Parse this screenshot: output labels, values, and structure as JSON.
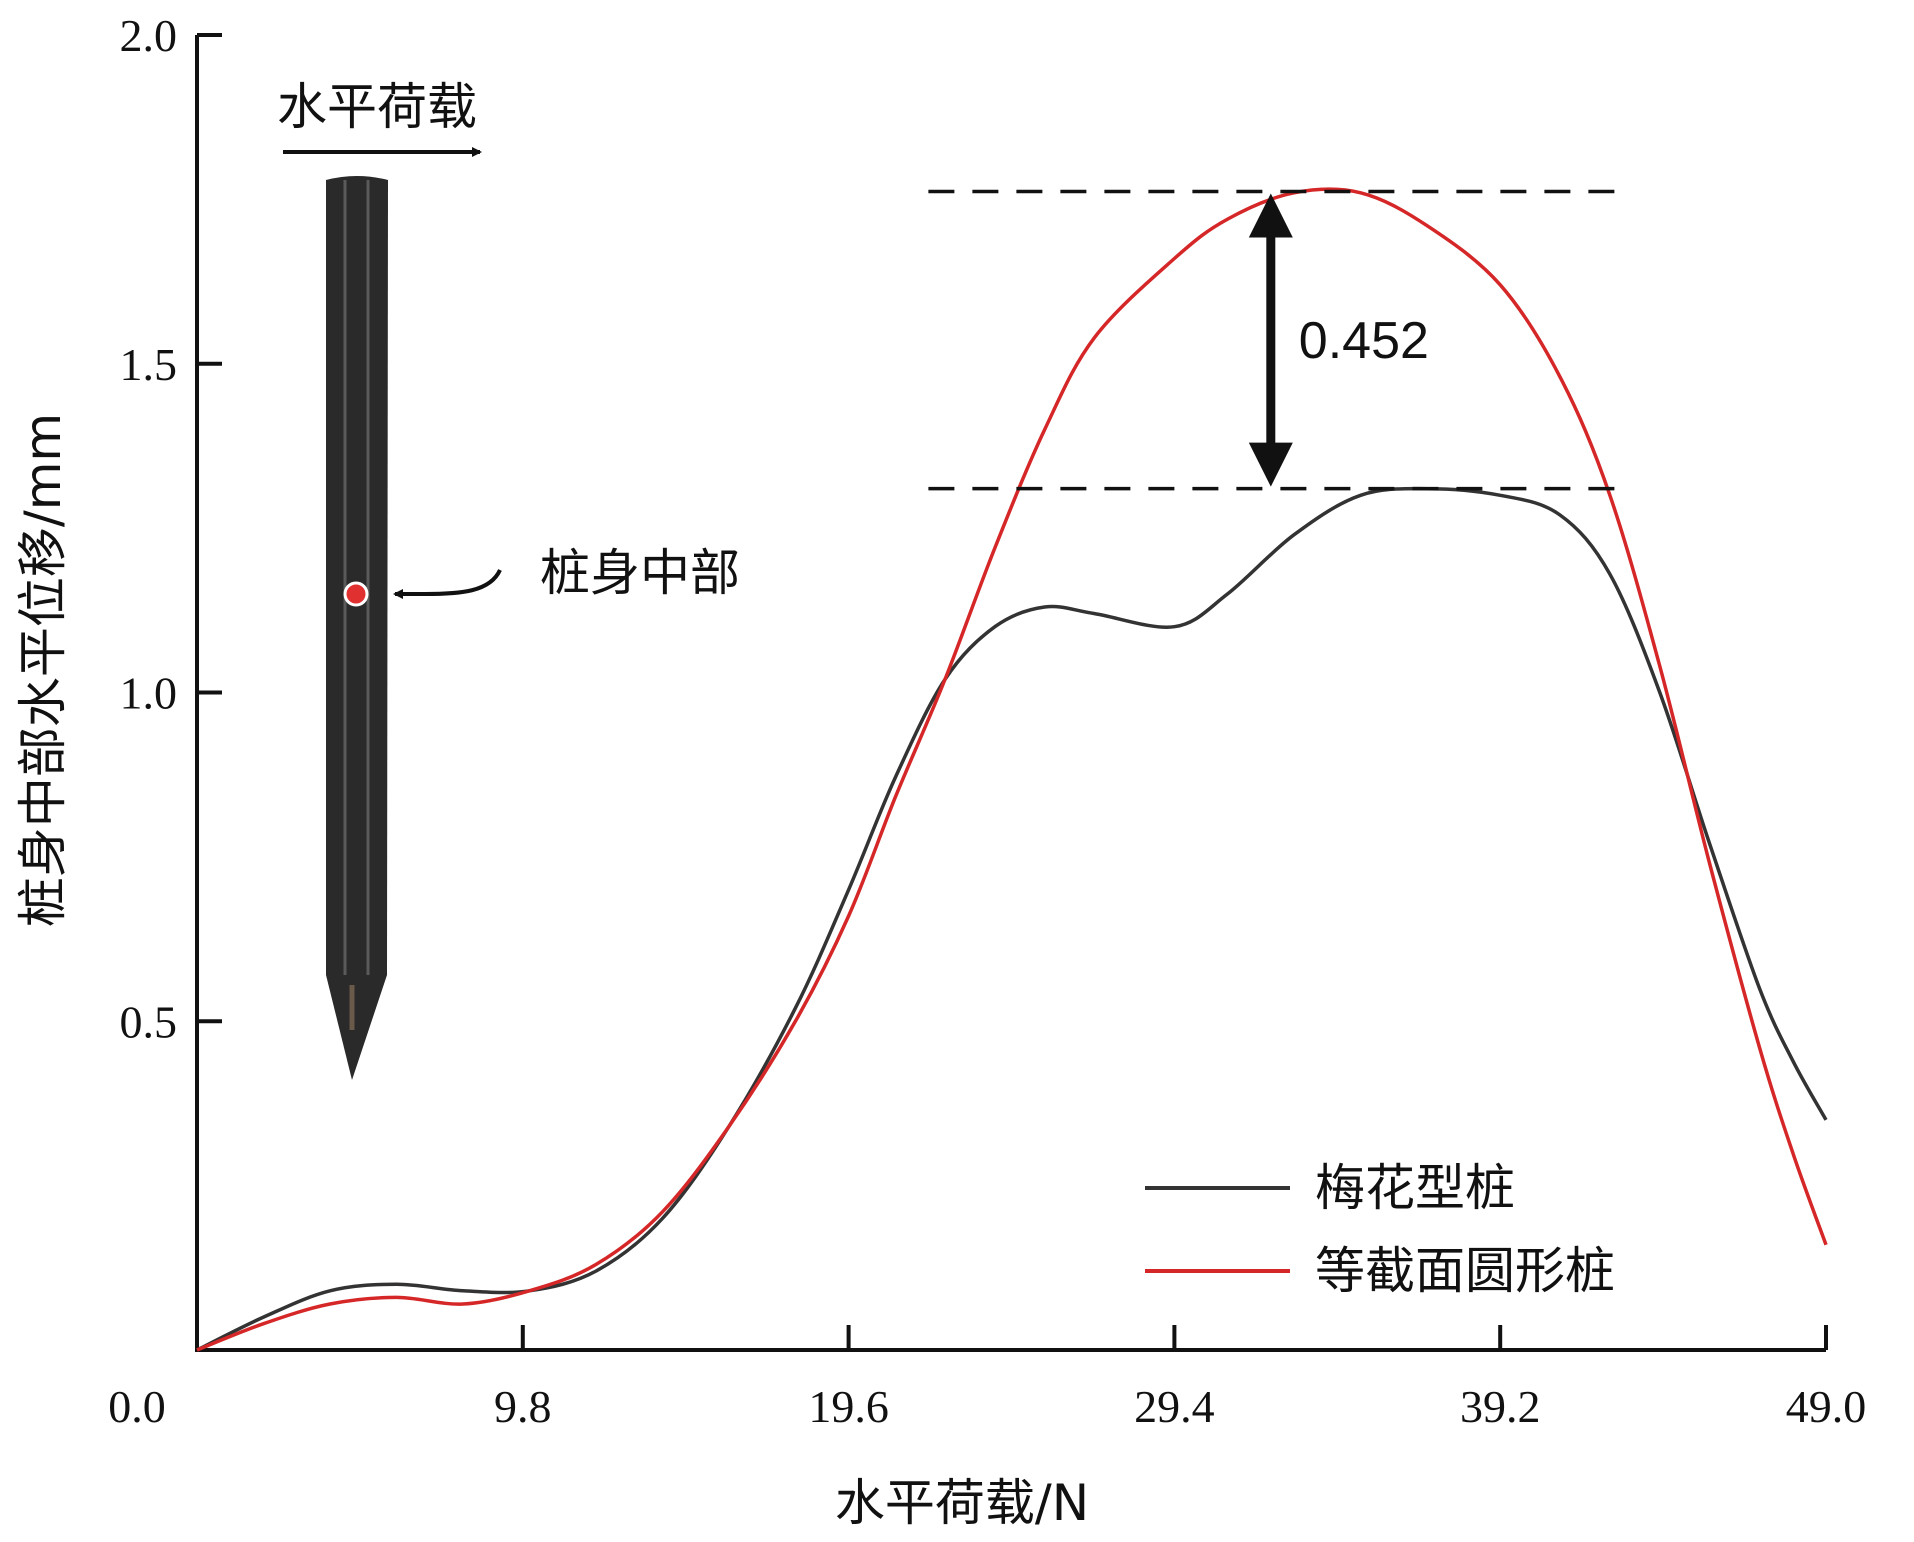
{
  "chart_data": {
    "type": "line",
    "xlabel": "水平荷载/N",
    "ylabel": "桩身中部水平位移/mm",
    "xlim": [
      0,
      49.0
    ],
    "ylim": [
      0,
      2.0
    ],
    "xticks": [
      0.0,
      9.8,
      19.6,
      29.4,
      39.2,
      49.0
    ],
    "xtick_labels": [
      "0.0",
      "9.8",
      "19.6",
      "29.4",
      "39.2",
      "49.0"
    ],
    "yticks": [
      0.5,
      1.0,
      1.5,
      2.0
    ],
    "ytick_labels": [
      "0.5",
      "1.0",
      "1.5",
      "2.0"
    ],
    "grid": false,
    "legend_position": "bottom-right",
    "series": [
      {
        "name": "梅花型桩",
        "color": "#333333",
        "x": [
          0,
          2,
          4,
          6,
          8,
          10,
          12,
          14,
          16,
          18,
          19.6,
          21,
          22.5,
          24,
          25.5,
          27,
          29.4,
          31,
          33,
          35,
          37,
          39.2,
          41,
          42.5,
          44,
          45.5,
          47,
          48,
          49
        ],
        "y": [
          0,
          0.05,
          0.09,
          0.1,
          0.09,
          0.09,
          0.12,
          0.2,
          0.34,
          0.52,
          0.7,
          0.87,
          1.02,
          1.1,
          1.13,
          1.12,
          1.1,
          1.15,
          1.24,
          1.3,
          1.31,
          1.3,
          1.27,
          1.18,
          1.0,
          0.77,
          0.55,
          0.44,
          0.35
        ]
      },
      {
        "name": "等截面圆形桩",
        "color": "#d62728",
        "x": [
          0,
          2,
          4,
          6,
          8,
          10,
          12,
          14,
          16,
          18,
          19.6,
          21,
          22.5,
          24,
          25.5,
          27,
          29.4,
          31,
          33,
          35,
          37,
          39.2,
          41,
          42.5,
          44,
          45.5,
          47,
          48,
          49
        ],
        "y": [
          0,
          0.04,
          0.07,
          0.08,
          0.07,
          0.09,
          0.13,
          0.21,
          0.34,
          0.5,
          0.66,
          0.84,
          1.02,
          1.22,
          1.4,
          1.54,
          1.66,
          1.72,
          1.76,
          1.76,
          1.71,
          1.62,
          1.48,
          1.3,
          1.04,
          0.74,
          0.46,
          0.3,
          0.16
        ]
      }
    ],
    "annotations": {
      "load_label": "水平荷载",
      "point_label": "桩身中部",
      "difference_value": "0.452",
      "upper_dashed_y": 1.762,
      "lower_dashed_y": 1.31,
      "arrow_x": 32.3,
      "dashed_x_range": [
        22,
        43
      ]
    }
  },
  "colors": {
    "axis": "#111111",
    "black_series": "#333333",
    "red_series": "#d62728",
    "pile_body": "#2a2a2a",
    "marker": "#e03030"
  }
}
